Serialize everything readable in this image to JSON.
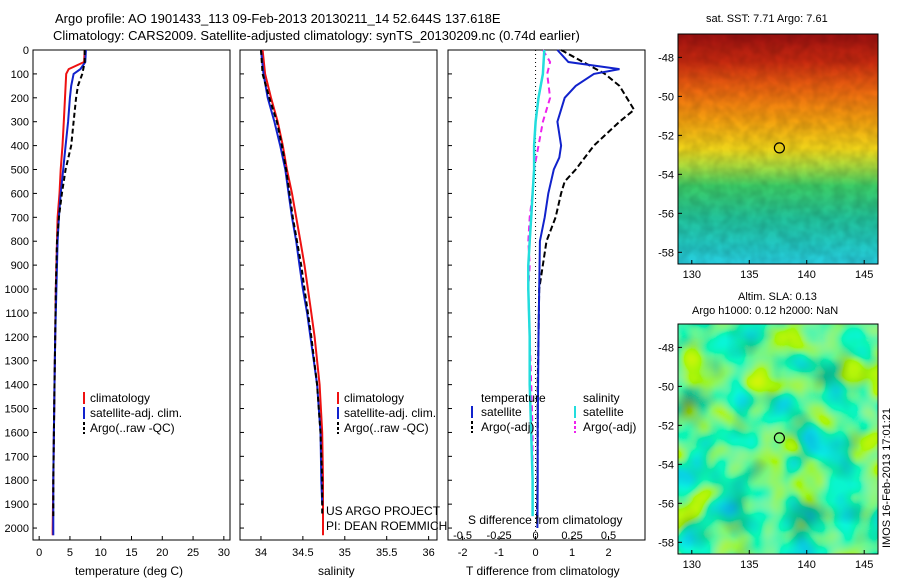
{
  "header": {
    "line1": "Argo profile: AO 1901433_113 09-Feb-2013 20130211_14 52.644S 137.618E",
    "line2": "Climatology: CARS2009. Satellite-adjusted climatology: synTS_20130209.nc (0.74d earlier)"
  },
  "colors": {
    "climatology": "#ee1111",
    "satellite": "#1122cc",
    "argo": "#000000",
    "salinity_satellite": "#22dddd",
    "salinity_argo": "#ee22ee"
  },
  "chart_data": [
    {
      "type": "line",
      "xlabel": "temperature (deg C)",
      "xlim": [
        -1,
        31
      ],
      "xticks": [
        "0",
        "5",
        "10",
        "15",
        "20",
        "25",
        "30"
      ],
      "ylim": [
        2050,
        0
      ],
      "yticks": [
        "0",
        "100",
        "200",
        "300",
        "400",
        "500",
        "600",
        "700",
        "800",
        "900",
        "1000",
        "1100",
        "1200",
        "1300",
        "1400",
        "1500",
        "1600",
        "1700",
        "1800",
        "1900",
        "2000"
      ],
      "legend": [
        "climatology",
        "satellite-adj. clim.",
        "Argo(..raw -QC)"
      ],
      "series": [
        {
          "name": "climatology",
          "depth": [
            0,
            50,
            80,
            100,
            150,
            200,
            300,
            400,
            500,
            600,
            700,
            800,
            1000,
            1200,
            1400,
            1600,
            1800,
            2000,
            2030
          ],
          "values": [
            7.4,
            7.3,
            4.8,
            4.4,
            4.3,
            4.2,
            4.0,
            3.8,
            3.5,
            3.3,
            3.0,
            2.9,
            2.7,
            2.6,
            2.5,
            2.4,
            2.3,
            2.2,
            2.2
          ]
        },
        {
          "name": "satellite-adj. clim.",
          "depth": [
            0,
            50,
            80,
            100,
            150,
            200,
            300,
            400,
            500,
            600,
            700,
            800,
            1000,
            1200,
            1400,
            1600,
            1800,
            2000,
            2030
          ],
          "values": [
            7.6,
            7.5,
            6.7,
            5.6,
            5.2,
            5.0,
            4.7,
            4.3,
            3.9,
            3.5,
            3.2,
            3.0,
            2.8,
            2.6,
            2.5,
            2.4,
            2.3,
            2.3,
            2.3
          ]
        },
        {
          "name": "Argo(..raw -QC)",
          "depth": [
            0,
            50,
            100,
            150,
            200,
            300,
            400,
            500,
            600,
            700,
            800,
            1000,
            1200,
            1400,
            1600,
            1800,
            1950
          ],
          "values": [
            7.4,
            7.4,
            7.0,
            6.3,
            6.0,
            5.6,
            5.2,
            4.3,
            3.7,
            3.2,
            2.9,
            2.7,
            2.6,
            2.5,
            2.4,
            2.3,
            2.3
          ]
        }
      ]
    },
    {
      "type": "line",
      "xlabel": "salinity",
      "xlim": [
        33.75,
        36.1
      ],
      "xticks": [
        "34",
        "34.5",
        "35",
        "35.5",
        "36"
      ],
      "ylim": [
        2050,
        0
      ],
      "legend": [
        "climatology",
        "satellite-adj. clim.",
        "Argo(..raw -QC)"
      ],
      "series": [
        {
          "name": "climatology",
          "depth": [
            0,
            100,
            200,
            300,
            400,
            500,
            600,
            700,
            800,
            900,
            1000,
            1100,
            1200,
            1300,
            1400,
            1600,
            1800,
            2000,
            2030
          ],
          "values": [
            34.02,
            34.05,
            34.12,
            34.2,
            34.26,
            34.31,
            34.37,
            34.42,
            34.47,
            34.52,
            34.56,
            34.6,
            34.64,
            34.67,
            34.7,
            34.73,
            34.74,
            34.74,
            34.74
          ]
        },
        {
          "name": "satellite-adj. clim.",
          "depth": [
            0,
            100,
            200,
            300,
            400,
            500,
            600,
            700,
            800,
            900,
            1000,
            1100,
            1200,
            1300,
            1400,
            1600,
            1800,
            1900
          ],
          "values": [
            34.0,
            34.03,
            34.08,
            34.16,
            34.23,
            34.29,
            34.33,
            34.37,
            34.42,
            34.46,
            34.5,
            34.55,
            34.59,
            34.63,
            34.67,
            34.71,
            34.72,
            34.73
          ]
        },
        {
          "name": "Argo(..raw -QC)",
          "depth": [
            0,
            100,
            200,
            300,
            400,
            500,
            600,
            700,
            800,
            900,
            1000,
            1200,
            1400,
            1600,
            1800,
            1950
          ],
          "values": [
            34.0,
            34.02,
            34.1,
            34.19,
            34.25,
            34.3,
            34.34,
            34.38,
            34.43,
            34.48,
            34.52,
            34.6,
            34.67,
            34.71,
            34.73,
            34.73
          ]
        }
      ]
    },
    {
      "type": "line",
      "xlabel": "T difference from climatology",
      "xlabel2": "S difference from climatology",
      "xlim": [
        -2.4,
        3
      ],
      "xticks": [
        "-2",
        "-1",
        "0",
        "1",
        "2"
      ],
      "xticks_top": [
        "-0.5",
        "-0.25",
        "0",
        "0.25",
        "0.5"
      ],
      "ylim": [
        2050,
        0
      ],
      "legend_title_left": "temperature",
      "legend_title_right": "salinity",
      "legend": [
        "satellite",
        "Argo(-adj)",
        "satellite",
        "Argo(-adj)"
      ],
      "series": [
        {
          "name": "temperature satellite",
          "depth": [
            0,
            50,
            80,
            100,
            150,
            200,
            300,
            400,
            450,
            500,
            600,
            700,
            800,
            1000,
            1200,
            1400,
            1600,
            1800,
            2000
          ],
          "values": [
            0.6,
            0.9,
            2.3,
            1.6,
            1.1,
            0.8,
            0.6,
            0.7,
            0.65,
            0.5,
            0.35,
            0.25,
            0.12,
            0.1,
            0.08,
            0.07,
            0.06,
            0.06,
            0.05
          ]
        },
        {
          "name": "temperature Argo(-adj)",
          "depth": [
            0,
            100,
            150,
            200,
            250,
            300,
            400,
            500,
            550,
            600,
            700,
            800,
            1000,
            1200,
            1400,
            1600,
            1800,
            1950
          ],
          "values": [
            0.7,
            1.9,
            2.3,
            2.5,
            2.7,
            2.3,
            1.6,
            1.1,
            0.8,
            0.7,
            0.55,
            0.3,
            0.1,
            0.08,
            0.06,
            0.06,
            0.05,
            0.04
          ]
        },
        {
          "name": "salinity satellite",
          "depth": [
            0,
            100,
            200,
            300,
            400,
            500,
            600,
            700,
            800,
            900,
            1000,
            1200,
            1400,
            1600,
            1800,
            1950
          ],
          "values": [
            0.06,
            0.05,
            0.02,
            0.0,
            -0.01,
            -0.01,
            -0.02,
            -0.03,
            -0.04,
            -0.05,
            -0.05,
            -0.04,
            -0.04,
            -0.03,
            -0.02,
            -0.02
          ]
        },
        {
          "name": "salinity Argo(-adj)",
          "depth": [
            0,
            50,
            100,
            200,
            300,
            400,
            500,
            600,
            700,
            800,
            900,
            1000,
            1200,
            1400,
            1600,
            1800,
            1950
          ],
          "values": [
            0.05,
            0.1,
            0.08,
            0.1,
            0.05,
            0.02,
            -0.01,
            -0.02,
            -0.04,
            -0.05,
            -0.04,
            -0.05,
            -0.04,
            -0.03,
            -0.02,
            -0.02,
            -0.02
          ]
        }
      ]
    }
  ],
  "notes": {
    "project": "US ARGO PROJECT",
    "pi": "PI: DEAN ROEMMICH"
  },
  "maps": {
    "sst_title": "sat. SST: 7.71  Argo: 7.61",
    "sla_title1": "Altim. SLA: 0.13",
    "sla_title2": "Argo h1000: 0.12 h2000: NaN",
    "lat_ticks": [
      "-48",
      "-50",
      "-52",
      "-54",
      "-56",
      "-58"
    ],
    "lon_ticks": [
      "130",
      "135",
      "140",
      "145"
    ],
    "float_lon": 137.618,
    "float_lat": -52.644,
    "stamp": "IMOS 16-Feb-2013 17:01:21"
  }
}
